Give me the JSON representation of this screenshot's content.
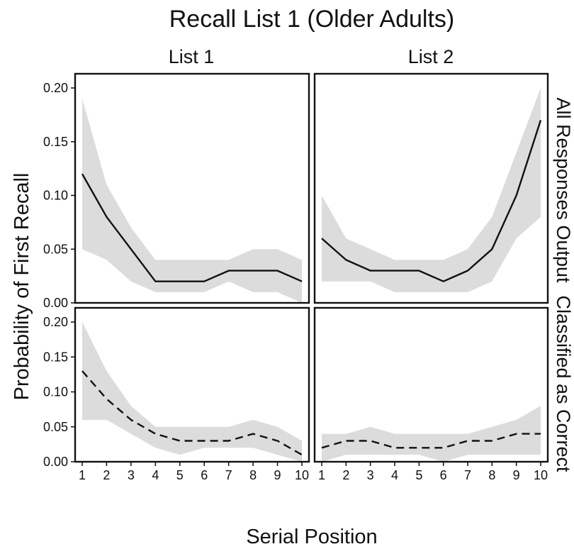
{
  "chart_data": {
    "type": "line",
    "title": "Recall List 1 (Older Adults)",
    "xlabel": "Serial Position",
    "ylabel": "Probability of First Recall",
    "x": [
      1,
      2,
      3,
      4,
      5,
      6,
      7,
      8,
      9,
      10
    ],
    "xlim": [
      1,
      10
    ],
    "ylim": [
      0,
      0.2
    ],
    "yticks": [
      "0.00",
      "0.05",
      "0.10",
      "0.15",
      "0.20"
    ],
    "xticks": [
      "1",
      "2",
      "3",
      "4",
      "5",
      "6",
      "7",
      "8",
      "9",
      "10"
    ],
    "columns": [
      "List 1",
      "List 2"
    ],
    "rows": [
      "All Responses Output",
      "Classified as Correct"
    ],
    "band_color": "#dcdcdc",
    "line_color": "#111111",
    "panels": [
      {
        "row": "All Responses Output",
        "column": "List 1",
        "line_style": "solid",
        "values": [
          0.12,
          0.08,
          0.05,
          0.02,
          0.02,
          0.02,
          0.03,
          0.03,
          0.03,
          0.02
        ],
        "lower": [
          0.05,
          0.04,
          0.02,
          0.01,
          0.01,
          0.01,
          0.02,
          0.01,
          0.01,
          0.0
        ],
        "upper": [
          0.19,
          0.11,
          0.07,
          0.04,
          0.04,
          0.04,
          0.04,
          0.05,
          0.05,
          0.04
        ]
      },
      {
        "row": "All Responses Output",
        "column": "List 2",
        "line_style": "solid",
        "values": [
          0.06,
          0.04,
          0.03,
          0.03,
          0.03,
          0.02,
          0.03,
          0.05,
          0.1,
          0.17
        ],
        "lower": [
          0.02,
          0.02,
          0.02,
          0.01,
          0.01,
          0.01,
          0.01,
          0.02,
          0.06,
          0.08
        ],
        "upper": [
          0.1,
          0.06,
          0.05,
          0.04,
          0.04,
          0.04,
          0.05,
          0.08,
          0.14,
          0.2
        ]
      },
      {
        "row": "Classified as Correct",
        "column": "List 1",
        "line_style": "dashed",
        "values": [
          0.13,
          0.09,
          0.06,
          0.04,
          0.03,
          0.03,
          0.03,
          0.04,
          0.03,
          0.01
        ],
        "lower": [
          0.06,
          0.06,
          0.04,
          0.02,
          0.01,
          0.02,
          0.02,
          0.02,
          0.01,
          0.0
        ],
        "upper": [
          0.2,
          0.13,
          0.08,
          0.05,
          0.05,
          0.05,
          0.05,
          0.06,
          0.05,
          0.03
        ]
      },
      {
        "row": "Classified as Correct",
        "column": "List 2",
        "line_style": "dashed",
        "values": [
          0.02,
          0.03,
          0.03,
          0.02,
          0.02,
          0.02,
          0.03,
          0.03,
          0.04,
          0.04
        ],
        "lower": [
          0.0,
          0.01,
          0.01,
          0.01,
          0.01,
          0.0,
          0.01,
          0.01,
          0.01,
          0.01
        ],
        "upper": [
          0.04,
          0.04,
          0.05,
          0.04,
          0.04,
          0.04,
          0.04,
          0.05,
          0.06,
          0.08
        ]
      }
    ]
  }
}
